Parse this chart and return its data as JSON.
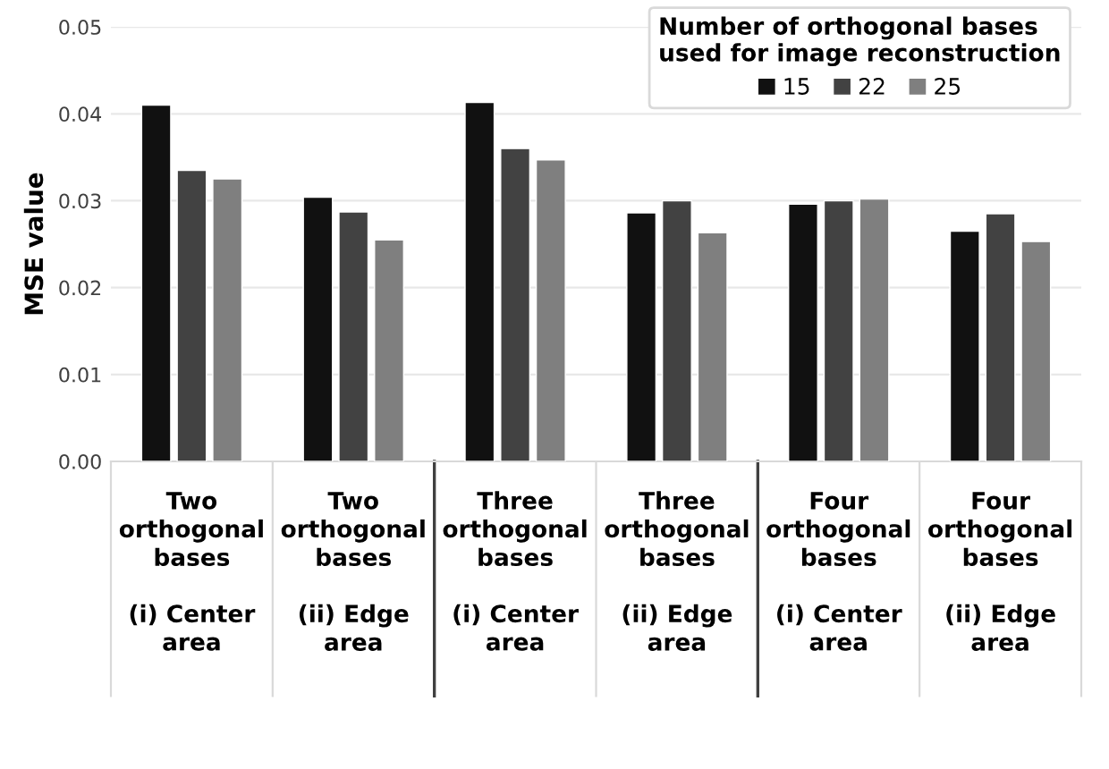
{
  "chart_data": {
    "type": "bar",
    "ylabel": "MSE value",
    "legend_title": "Number of orthogonal bases\nused for image reconstruction",
    "categories": [
      "Two\northogonal\nbases\n\n(i) Center\narea",
      "Two\northogonal\nbases\n\n(ii) Edge\narea",
      "Three\northogonal\nbases\n\n(i) Center\narea",
      "Three\northogonal\nbases\n\n(ii) Edge\narea",
      "Four\northogonal\nbases\n\n(i) Center\narea",
      "Four\northogonal\nbases\n\n(ii) Edge\narea"
    ],
    "series": [
      {
        "name": "15",
        "color": "#111111",
        "values": [
          0.041,
          0.0304,
          0.0413,
          0.0286,
          0.0296,
          0.0265
        ]
      },
      {
        "name": "22",
        "color": "#424242",
        "values": [
          0.0335,
          0.0287,
          0.036,
          0.03,
          0.03,
          0.0285
        ]
      },
      {
        "name": "25",
        "color": "#7f7f7f",
        "values": [
          0.0325,
          0.0255,
          0.0347,
          0.0263,
          0.0302,
          0.0253
        ]
      }
    ],
    "ylim": [
      0,
      0.05
    ],
    "yticks": [
      {
        "value": 0,
        "label": "0.00"
      },
      {
        "value": 0.01,
        "label": "0.01"
      },
      {
        "value": 0.02,
        "label": "0.02"
      },
      {
        "value": 0.03,
        "label": "0.03"
      },
      {
        "value": 0.04,
        "label": "0.04"
      },
      {
        "value": 0.05,
        "label": "0.05"
      }
    ],
    "grid": "y",
    "legend": "top right"
  }
}
